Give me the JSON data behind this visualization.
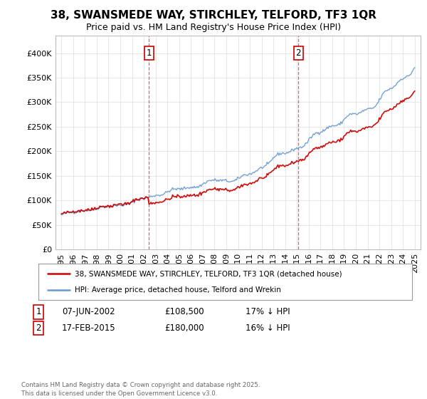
{
  "title1": "38, SWANSMEDE WAY, STIRCHLEY, TELFORD, TF3 1QR",
  "title2": "Price paid vs. HM Land Registry's House Price Index (HPI)",
  "legend_line1": "38, SWANSMEDE WAY, STIRCHLEY, TELFORD, TF3 1QR (detached house)",
  "legend_line2": "HPI: Average price, detached house, Telford and Wrekin",
  "marker1_label": "1",
  "marker1_date": "07-JUN-2002",
  "marker1_price": "£108,500",
  "marker1_pct": "17% ↓ HPI",
  "marker1_year": 2002.44,
  "marker1_value": 108500,
  "marker2_label": "2",
  "marker2_date": "17-FEB-2015",
  "marker2_price": "£180,000",
  "marker2_pct": "16% ↓ HPI",
  "marker2_year": 2015.12,
  "marker2_value": 180000,
  "copyright": "Contains HM Land Registry data © Crown copyright and database right 2025.\nThis data is licensed under the Open Government Licence v3.0.",
  "red_color": "#cc0000",
  "blue_color": "#6699cc",
  "ylim_min": 0,
  "ylim_max": 420000,
  "yticks": [
    0,
    50000,
    100000,
    150000,
    200000,
    250000,
    300000,
    350000,
    400000
  ],
  "xlim_min": 1994.5,
  "xlim_max": 2025.5,
  "start_year": 1995,
  "end_year": 2025,
  "bg_color": "#ffffff",
  "grid_color": "#dddddd"
}
